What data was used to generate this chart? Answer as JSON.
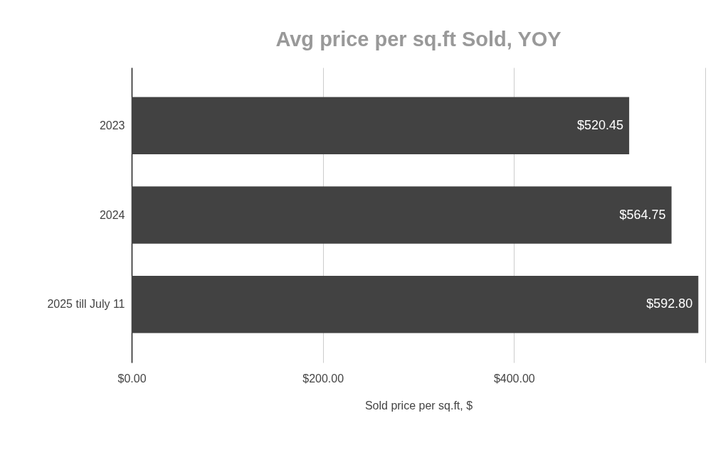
{
  "chart_data": {
    "type": "bar",
    "orientation": "horizontal",
    "title": "Avg price per sq.ft Sold, YOY",
    "xlabel": "Sold price per sq.ft, $",
    "categories": [
      "2023",
      "2024",
      "2025 till July 11"
    ],
    "values": [
      520.45,
      564.75,
      592.8
    ],
    "value_labels": [
      "$520.45",
      "$564.75",
      "$592.80"
    ],
    "color": "#424242",
    "xlim": [
      0,
      600
    ],
    "xticks": [
      {
        "value": 0,
        "label": "$0.00"
      },
      {
        "value": 200,
        "label": "$200.00"
      },
      {
        "value": 400,
        "label": "$400.00"
      },
      {
        "value": 600,
        "label": null
      }
    ],
    "grid": "x"
  }
}
